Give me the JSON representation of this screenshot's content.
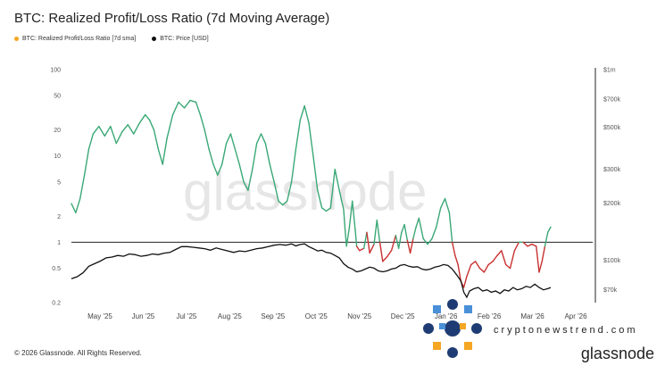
{
  "title": "BTC: Realized Profit/Loss Ratio (7d Moving Average)",
  "legend": {
    "ratio": {
      "label": "BTC: Realized Profit/Loss Ratio [7d sma]",
      "color": "#f5a623"
    },
    "price": {
      "label": "BTC: Price [USD]",
      "color": "#111111"
    }
  },
  "footer": {
    "copyright": "© 2026 Glassnode. All Rights Reserved."
  },
  "brand": {
    "name": "glassnode",
    "watermark": "glassnode"
  },
  "watermark_site": "cryptonewstrend.com",
  "colors": {
    "above": "#3aa876",
    "below": "#c9312f",
    "price": "#111111",
    "ref_line": "#222222",
    "logo_navy": "#1f3b73",
    "logo_blue": "#4a90d9",
    "logo_orange": "#f5a623"
  },
  "chart_data": {
    "type": "line",
    "title": "BTC: Realized Profit/Loss Ratio (7d Moving Average)",
    "x_tick_labels": [
      "May '25",
      "Jun '25",
      "Jul '25",
      "Aug '25",
      "Sep '25",
      "Oct '25",
      "Nov '25",
      "Dec '25",
      "Jan '26",
      "Feb '26",
      "Mar '26",
      "Apr '26"
    ],
    "left_axis": {
      "scale": "log",
      "ylim": [
        0.2,
        100
      ],
      "ticks": [
        100,
        50,
        20,
        10,
        5,
        2,
        1,
        0.5,
        0.2
      ],
      "tick_labels": [
        "100",
        "50",
        "20",
        "10",
        "5",
        "2",
        "1",
        "0.5",
        "0.2"
      ]
    },
    "right_axis": {
      "scale": "log",
      "ylim": [
        60000,
        1000000
      ],
      "ticks": [
        1000000,
        700000,
        500000,
        300000,
        200000,
        100000,
        70000
      ],
      "tick_labels": [
        "$1m",
        "$700k",
        "$500k",
        "$300k",
        "$200k",
        "$100k",
        "$70k"
      ]
    },
    "reference_line": 1,
    "x_range_days": [
      0,
      360
    ],
    "series": [
      {
        "name": "BTC: Realized Profit/Loss Ratio [7d sma]",
        "axis": "left",
        "points": [
          [
            0,
            2.8
          ],
          [
            3,
            2.2
          ],
          [
            6,
            3.2
          ],
          [
            9,
            6
          ],
          [
            12,
            12
          ],
          [
            15,
            18
          ],
          [
            19,
            22
          ],
          [
            23,
            17
          ],
          [
            27,
            22
          ],
          [
            31,
            14
          ],
          [
            35,
            19
          ],
          [
            39,
            23
          ],
          [
            43,
            18
          ],
          [
            47,
            24
          ],
          [
            51,
            30
          ],
          [
            54,
            26
          ],
          [
            57,
            20
          ],
          [
            60,
            12
          ],
          [
            63,
            8
          ],
          [
            66,
            16
          ],
          [
            70,
            30
          ],
          [
            74,
            42
          ],
          [
            78,
            36
          ],
          [
            82,
            44
          ],
          [
            86,
            42
          ],
          [
            89,
            30
          ],
          [
            92,
            20
          ],
          [
            95,
            12
          ],
          [
            98,
            8
          ],
          [
            101,
            6
          ],
          [
            104,
            8
          ],
          [
            107,
            14
          ],
          [
            110,
            18
          ],
          [
            113,
            12
          ],
          [
            116,
            8
          ],
          [
            119,
            5
          ],
          [
            122,
            4
          ],
          [
            125,
            7
          ],
          [
            128,
            14
          ],
          [
            131,
            18
          ],
          [
            134,
            14
          ],
          [
            137,
            8
          ],
          [
            140,
            5
          ],
          [
            143,
            3
          ],
          [
            146,
            2.7
          ],
          [
            149,
            3
          ],
          [
            152,
            5
          ],
          [
            155,
            12
          ],
          [
            158,
            26
          ],
          [
            161,
            38
          ],
          [
            164,
            24
          ],
          [
            167,
            10
          ],
          [
            170,
            4
          ],
          [
            173,
            2.5
          ],
          [
            176,
            2.3
          ],
          [
            179,
            2.5
          ],
          [
            182,
            7
          ],
          [
            185,
            4
          ],
          [
            188,
            2.4
          ],
          [
            189,
            1.4
          ],
          [
            190,
            0.9
          ],
          [
            192,
            1.5
          ],
          [
            194,
            3
          ],
          [
            196,
            1.4
          ],
          [
            197,
            0.9
          ],
          [
            199,
            0.8
          ],
          [
            202,
            0.85
          ],
          [
            204,
            1.3
          ],
          [
            206,
            0.75
          ],
          [
            209,
            0.95
          ],
          [
            211,
            1.8
          ],
          [
            213,
            1
          ],
          [
            215,
            0.6
          ],
          [
            218,
            0.68
          ],
          [
            221,
            0.8
          ],
          [
            224,
            1.2
          ],
          [
            226,
            0.85
          ],
          [
            228,
            1.3
          ],
          [
            230,
            1.6
          ],
          [
            232,
            1.05
          ],
          [
            234,
            0.75
          ],
          [
            236,
            1.1
          ],
          [
            238,
            1.5
          ],
          [
            240,
            1.9
          ],
          [
            243,
            1.1
          ],
          [
            246,
            0.95
          ],
          [
            249,
            1.1
          ],
          [
            252,
            1.5
          ],
          [
            255,
            2.5
          ],
          [
            258,
            3.2
          ],
          [
            261,
            2.2
          ],
          [
            263,
            1
          ],
          [
            265,
            0.7
          ],
          [
            267,
            0.55
          ],
          [
            269,
            0.35
          ],
          [
            271,
            0.3
          ],
          [
            273,
            0.4
          ],
          [
            276,
            0.55
          ],
          [
            279,
            0.6
          ],
          [
            282,
            0.5
          ],
          [
            285,
            0.45
          ],
          [
            288,
            0.55
          ],
          [
            291,
            0.6
          ],
          [
            294,
            0.7
          ],
          [
            297,
            0.8
          ],
          [
            300,
            0.55
          ],
          [
            303,
            0.5
          ],
          [
            306,
            0.8
          ],
          [
            309,
            1
          ],
          [
            312,
            1
          ],
          [
            315,
            0.9
          ],
          [
            318,
            0.95
          ],
          [
            321,
            0.9
          ],
          [
            323,
            0.45
          ],
          [
            325,
            0.6
          ],
          [
            327,
            0.9
          ],
          [
            329,
            1.3
          ],
          [
            331,
            1.5
          ]
        ]
      },
      {
        "name": "BTC: Price [USD]",
        "axis": "right",
        "points": [
          [
            0,
            80000
          ],
          [
            4,
            82000
          ],
          [
            8,
            86000
          ],
          [
            12,
            93000
          ],
          [
            16,
            96000
          ],
          [
            20,
            99000
          ],
          [
            24,
            103000
          ],
          [
            28,
            104000
          ],
          [
            32,
            106000
          ],
          [
            36,
            105000
          ],
          [
            40,
            108000
          ],
          [
            44,
            107000
          ],
          [
            48,
            105000
          ],
          [
            52,
            106000
          ],
          [
            56,
            108000
          ],
          [
            60,
            107000
          ],
          [
            64,
            109000
          ],
          [
            68,
            110000
          ],
          [
            72,
            114000
          ],
          [
            76,
            118000
          ],
          [
            80,
            118000
          ],
          [
            84,
            117000
          ],
          [
            88,
            116000
          ],
          [
            92,
            115000
          ],
          [
            96,
            113000
          ],
          [
            100,
            116000
          ],
          [
            104,
            114000
          ],
          [
            108,
            112000
          ],
          [
            112,
            110000
          ],
          [
            116,
            112000
          ],
          [
            120,
            111000
          ],
          [
            124,
            113000
          ],
          [
            128,
            115000
          ],
          [
            132,
            116000
          ],
          [
            136,
            118000
          ],
          [
            140,
            120000
          ],
          [
            144,
            121000
          ],
          [
            148,
            120000
          ],
          [
            152,
            122000
          ],
          [
            155,
            119000
          ],
          [
            158,
            121000
          ],
          [
            161,
            122000
          ],
          [
            164,
            118000
          ],
          [
            167,
            115000
          ],
          [
            170,
            112000
          ],
          [
            173,
            113000
          ],
          [
            176,
            110000
          ],
          [
            179,
            109000
          ],
          [
            182,
            106000
          ],
          [
            185,
            103000
          ],
          [
            188,
            96000
          ],
          [
            191,
            92000
          ],
          [
            194,
            90000
          ],
          [
            197,
            87000
          ],
          [
            200,
            88000
          ],
          [
            203,
            90000
          ],
          [
            206,
            92000
          ],
          [
            209,
            91000
          ],
          [
            212,
            88000
          ],
          [
            215,
            87000
          ],
          [
            218,
            88000
          ],
          [
            221,
            90000
          ],
          [
            224,
            91000
          ],
          [
            227,
            94000
          ],
          [
            230,
            95000
          ],
          [
            233,
            93000
          ],
          [
            236,
            92000
          ],
          [
            239,
            92500
          ],
          [
            242,
            90000
          ],
          [
            245,
            89000
          ],
          [
            248,
            90000
          ],
          [
            251,
            92000
          ],
          [
            254,
            93000
          ],
          [
            257,
            95000
          ],
          [
            260,
            94000
          ],
          [
            263,
            90000
          ],
          [
            266,
            84000
          ],
          [
            269,
            78000
          ],
          [
            271,
            68000
          ],
          [
            273,
            64000
          ],
          [
            275,
            69000
          ],
          [
            278,
            71000
          ],
          [
            281,
            72000
          ],
          [
            284,
            69000
          ],
          [
            287,
            70000
          ],
          [
            290,
            68000
          ],
          [
            293,
            69000
          ],
          [
            296,
            67000
          ],
          [
            299,
            70000
          ],
          [
            302,
            69000
          ],
          [
            305,
            72000
          ],
          [
            308,
            70000
          ],
          [
            311,
            71000
          ],
          [
            314,
            73000
          ],
          [
            317,
            72000
          ],
          [
            320,
            75000
          ],
          [
            323,
            72000
          ],
          [
            326,
            70000
          ],
          [
            329,
            71000
          ],
          [
            331,
            72000
          ]
        ]
      }
    ]
  }
}
